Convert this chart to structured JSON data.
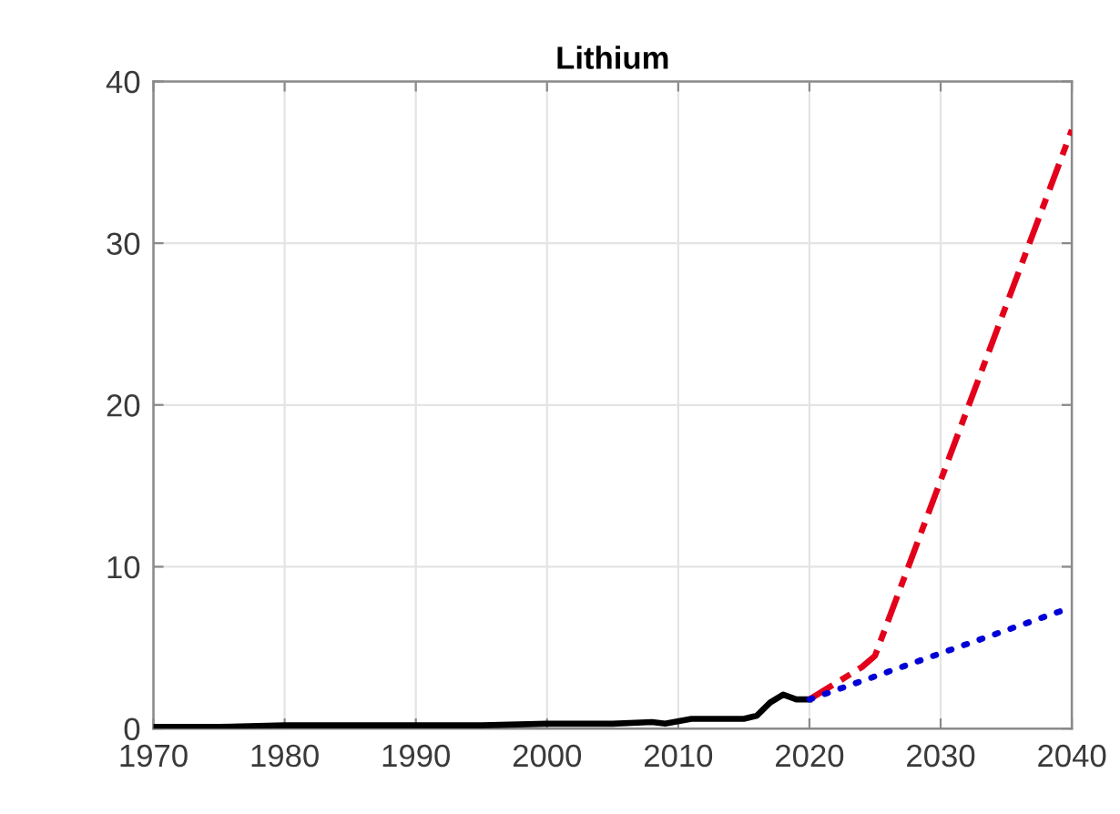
{
  "chart_data": {
    "type": "line",
    "title": "Lithium",
    "xlim": [
      1970,
      2040
    ],
    "ylim": [
      0,
      40
    ],
    "xticks": [
      1970,
      1980,
      1990,
      2000,
      2010,
      2020,
      2030,
      2040
    ],
    "yticks": [
      0,
      10,
      20,
      30,
      40
    ],
    "grid": true,
    "series": [
      {
        "color": "#000000",
        "line_style": "solid",
        "x": [
          1970,
          1975,
          1980,
          1985,
          1990,
          1995,
          2000,
          2005,
          2008,
          2009,
          2011,
          2013,
          2015,
          2016,
          2017,
          2018,
          2019,
          2020
        ],
        "values": [
          0.1,
          0.1,
          0.2,
          0.2,
          0.2,
          0.2,
          0.3,
          0.3,
          0.4,
          0.3,
          0.6,
          0.6,
          0.6,
          0.8,
          1.6,
          2.1,
          1.8,
          1.8
        ]
      },
      {
        "color": "#e3001b",
        "line_style": "dashdot",
        "x": [
          2020,
          2022,
          2024,
          2025,
          2040
        ],
        "values": [
          1.8,
          2.8,
          3.8,
          4.5,
          37
        ]
      },
      {
        "color": "#0000d6",
        "line_style": "dotted",
        "x": [
          2020,
          2040
        ],
        "values": [
          1.8,
          7.5
        ]
      }
    ]
  }
}
